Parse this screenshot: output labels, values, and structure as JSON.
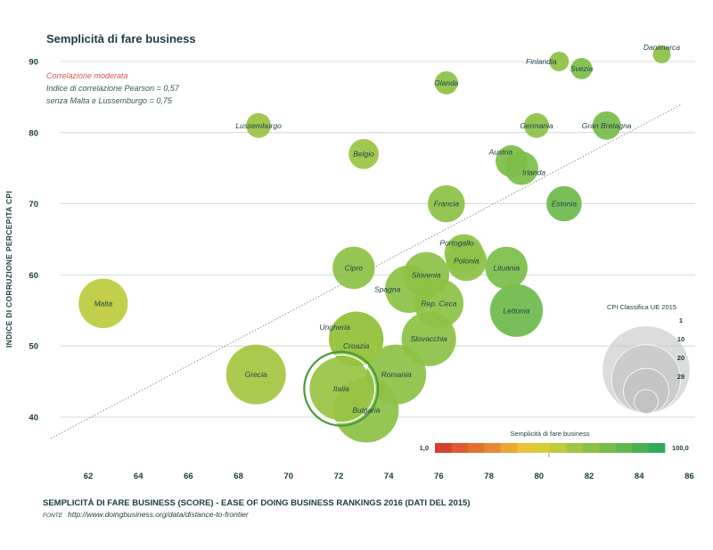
{
  "chart_data": {
    "type": "scatter",
    "title": "Semplicità di fare business",
    "xlabel": "SEMPLICITÀ DI FARE BUSINESS (SCORE) - EASE OF DOING BUSINESS RANKINGS 2016 (DATI DEL 2015)",
    "ylabel": "INDICE DI CORRUZIONE PERCEPITA CPI",
    "xlim": [
      60,
      86
    ],
    "ylim": [
      36,
      92
    ],
    "x_ticks": [
      "62",
      "64",
      "66",
      "68",
      "70",
      "72",
      "74",
      "76",
      "78",
      "80",
      "82",
      "84",
      "86"
    ],
    "y_ticks": [
      "40",
      "50",
      "60",
      "70",
      "80",
      "90"
    ],
    "grid": "horizontal",
    "trendline": {
      "from": [
        60.5,
        37
      ],
      "to": [
        85.7,
        84
      ]
    },
    "notes": {
      "correlation": "Correlazione moderata",
      "pearson": "Indice di correlazione Pearson = 0,57",
      "without": "senza Malta e Lussemburgo = 0,75"
    },
    "source": {
      "key": "FONTE",
      "url": "http://www.doingbusiness.org/data/distance-to-frontier"
    },
    "color_legend": {
      "title": "Semplicità di fare business",
      "min": "1,0",
      "max": "100,0",
      "colors": [
        "#d7402f",
        "#de5a2f",
        "#e27030",
        "#e68a31",
        "#eaa833",
        "#e8c335",
        "#d6cd37",
        "#bdcb3c",
        "#a4c640",
        "#8cc145",
        "#77bc49",
        "#62b74e",
        "#4ab153",
        "#33aa58"
      ]
    },
    "size_legend": {
      "title": "CPI Classifica UE 2015",
      "labels": [
        "1",
        "10",
        "20",
        "28"
      ],
      "ranks": [
        1,
        10,
        20,
        28
      ]
    },
    "highlight": "Italia",
    "points": [
      {
        "name": "Danimarca",
        "x": 84.9,
        "y": 91,
        "rank": 1,
        "color": "#8cc145"
      },
      {
        "name": "Finlandia",
        "x": 80.8,
        "y": 90,
        "rank": 2,
        "color": "#8cc145"
      },
      {
        "name": "Svezia",
        "x": 81.7,
        "y": 89,
        "rank": 3,
        "color": "#7cbe48"
      },
      {
        "name": "Olanda",
        "x": 76.3,
        "y": 87,
        "rank": 4,
        "color": "#8cc145"
      },
      {
        "name": "Lussemburgo",
        "x": 68.8,
        "y": 81,
        "rank": 5,
        "color": "#99c342"
      },
      {
        "name": "Germania",
        "x": 79.9,
        "y": 81,
        "rank": 5,
        "color": "#8cc145"
      },
      {
        "name": "Gran Bretagna",
        "x": 82.7,
        "y": 81,
        "rank": 7,
        "color": "#77bc49"
      },
      {
        "name": "Belgio",
        "x": 73.0,
        "y": 77,
        "rank": 8,
        "color": "#99c342"
      },
      {
        "name": "Austria",
        "x": 78.9,
        "y": 76,
        "rank": 9,
        "color": "#7cbe48"
      },
      {
        "name": "Irlanda",
        "x": 79.3,
        "y": 75,
        "rank": 10,
        "color": "#7cbe48"
      },
      {
        "name": "Estonia",
        "x": 81.0,
        "y": 70,
        "rank": 11,
        "color": "#6cba4b"
      },
      {
        "name": "Francia",
        "x": 76.3,
        "y": 70,
        "rank": 12,
        "color": "#8cc145"
      },
      {
        "name": "Portogallo",
        "x": 77.0,
        "y": 63,
        "rank": 13,
        "color": "#8cc145"
      },
      {
        "name": "Polonia",
        "x": 77.1,
        "y": 62,
        "rank": 14,
        "color": "#8cc145"
      },
      {
        "name": "Cipro",
        "x": 72.6,
        "y": 61,
        "rank": 15,
        "color": "#8cc145"
      },
      {
        "name": "Lituania",
        "x": 78.7,
        "y": 61,
        "rank": 15,
        "color": "#7cbe48"
      },
      {
        "name": "Slovenia",
        "x": 75.5,
        "y": 60,
        "rank": 17,
        "color": "#8cc145"
      },
      {
        "name": "Spagna",
        "x": 74.8,
        "y": 58,
        "rank": 18,
        "color": "#8cc145"
      },
      {
        "name": "Malta",
        "x": 62.6,
        "y": 56,
        "rank": 19,
        "color": "#bdcb3c"
      },
      {
        "name": "Rep. Ceca",
        "x": 76.0,
        "y": 56,
        "rank": 19,
        "color": "#8cc145"
      },
      {
        "name": "Lettonia",
        "x": 79.1,
        "y": 55,
        "rank": 21,
        "color": "#6cba4b"
      },
      {
        "name": "Ungheria",
        "x": 72.7,
        "y": 51,
        "rank": 22,
        "color": "#99c342"
      },
      {
        "name": "Croazia",
        "x": 72.7,
        "y": 51,
        "rank": 22,
        "color": "#99c342"
      },
      {
        "name": "Slovacchia",
        "x": 75.6,
        "y": 51,
        "rank": 22,
        "color": "#8cc145"
      },
      {
        "name": "Grecia",
        "x": 68.7,
        "y": 46,
        "rank": 25,
        "color": "#a4c640"
      },
      {
        "name": "Romania",
        "x": 74.3,
        "y": 46,
        "rank": 25,
        "color": "#8cc145"
      },
      {
        "name": "Italia",
        "x": 72.1,
        "y": 44,
        "rank": 27,
        "color": "#99c342"
      },
      {
        "name": "Bulgaria",
        "x": 73.1,
        "y": 41,
        "rank": 28,
        "color": "#8cc145"
      }
    ]
  }
}
